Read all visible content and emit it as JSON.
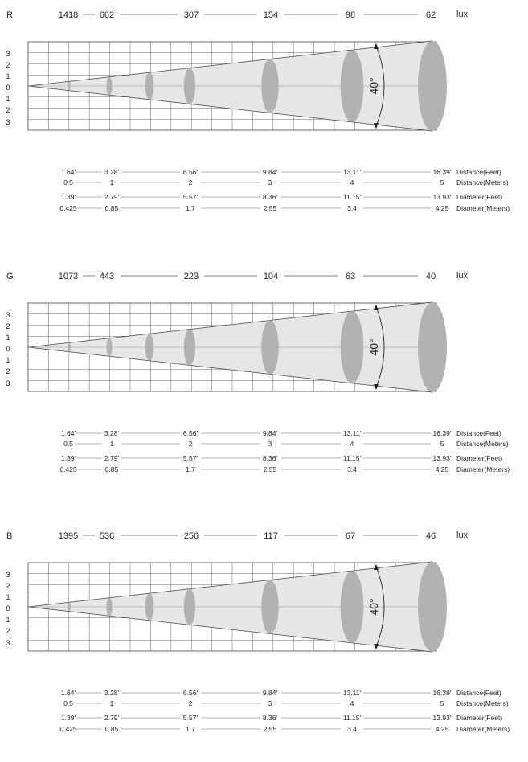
{
  "panels": [
    {
      "color_label": "R",
      "lux_values": [
        "1418",
        "662",
        "307",
        "154",
        "98",
        "62"
      ],
      "lux_unit": "lux",
      "angle": "40°",
      "y_axis_labels": [
        "3",
        "2",
        "1",
        "0",
        "1",
        "2",
        "3"
      ],
      "distance_feet": [
        "1.64'",
        "3.28'",
        "6.56'",
        "9.84'",
        "13.11'",
        "16.39'"
      ],
      "distance_meters": [
        "0.5",
        "1",
        "2",
        "3",
        "4",
        "5"
      ],
      "diameter_feet": [
        "1.39'",
        "2.79'",
        "5.57'",
        "8.36'",
        "11.15'",
        "13.93'"
      ],
      "diameter_meters": [
        "0.425",
        "0.85",
        "1.7",
        "2.55",
        "3.4",
        "4.25"
      ],
      "row_labels": [
        "Distance(Feet)",
        "Distance(Meters)",
        "Diameter(Feet)",
        "Diameter(Meters)"
      ]
    },
    {
      "color_label": "G",
      "lux_values": [
        "1073",
        "443",
        "223",
        "104",
        "63",
        "40"
      ],
      "lux_unit": "lux",
      "angle": "40°",
      "y_axis_labels": [
        "3",
        "2",
        "1",
        "0",
        "1",
        "2",
        "3"
      ],
      "distance_feet": [
        "1.64'",
        "3.28'",
        "6.56'",
        "9.84'",
        "13.11'",
        "16.39'"
      ],
      "distance_meters": [
        "0.5",
        "1",
        "2",
        "3",
        "4",
        "5"
      ],
      "diameter_feet": [
        "1.39'",
        "2.79'",
        "5.57'",
        "8.36'",
        "11.15'",
        "13.93'"
      ],
      "diameter_meters": [
        "0.425",
        "0.85",
        "1.7",
        "2.55",
        "3.4",
        "4.25"
      ],
      "row_labels": [
        "Distance(Feet)",
        "Distance(Meters)",
        "Diameter(Feet)",
        "Diameter(Meters)"
      ]
    },
    {
      "color_label": "B",
      "lux_values": [
        "1395",
        "536",
        "256",
        "117",
        "67",
        "46"
      ],
      "lux_unit": "lux",
      "angle": "40°",
      "y_axis_labels": [
        "3",
        "2",
        "1",
        "0",
        "1",
        "2",
        "3"
      ],
      "distance_feet": [
        "1.64'",
        "3.28'",
        "6.56'",
        "9.84'",
        "13.11'",
        "16.39'"
      ],
      "distance_meters": [
        "0.5",
        "1",
        "2",
        "3",
        "4",
        "5"
      ],
      "diameter_feet": [
        "1.39'",
        "2.79'",
        "5.57'",
        "8.36'",
        "11.15'",
        "13.93'"
      ],
      "diameter_meters": [
        "0.425",
        "0.85",
        "1.7",
        "2.55",
        "3.4",
        "4.25"
      ],
      "row_labels": [
        "Distance(Feet)",
        "Distance(Meters)",
        "Diameter(Feet)",
        "Diameter(Meters)"
      ]
    }
  ],
  "colors": {
    "beam_fill": "#e6e6e6",
    "ellipse_fill": "#b2b2b2",
    "line": "#444444"
  }
}
